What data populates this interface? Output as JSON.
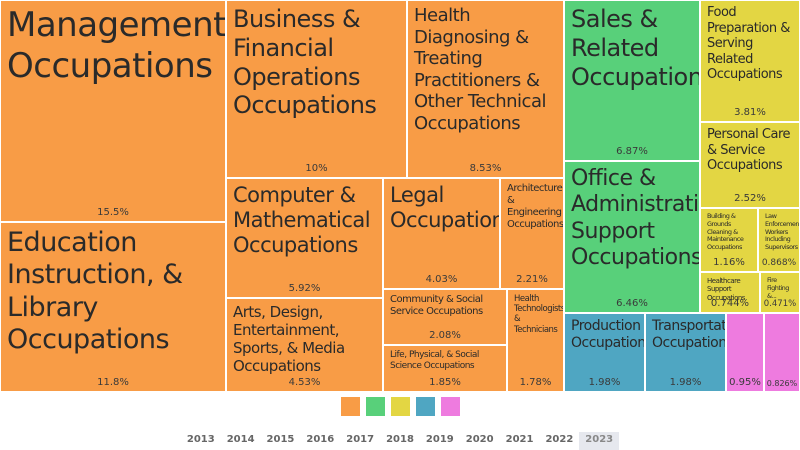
{
  "chart_data": {
    "type": "treemap",
    "colors": {
      "orange": "#f89c46",
      "green": "#58d07a",
      "yellow": "#e3d643",
      "blue": "#4fa6c2",
      "pink": "#ee7bdf"
    },
    "legend": [
      "orange",
      "green",
      "yellow",
      "blue",
      "pink"
    ],
    "items": [
      {
        "label": "Management Occupations",
        "value": "15.5%",
        "color": "orange"
      },
      {
        "label": "Education Instruction, & Library Occupations",
        "value": "11.8%",
        "color": "orange"
      },
      {
        "label": "Business & Financial Operations Occupations",
        "value": "10%",
        "color": "orange"
      },
      {
        "label": "Health Diagnosing & Treating Practitioners & Other Technical Occupations",
        "value": "8.53%",
        "color": "orange"
      },
      {
        "label": "Computer & Mathematical Occupations",
        "value": "5.92%",
        "color": "orange"
      },
      {
        "label": "Arts, Design, Entertainment, Sports, & Media Occupations",
        "value": "4.53%",
        "color": "orange"
      },
      {
        "label": "Legal Occupations",
        "value": "4.03%",
        "color": "orange"
      },
      {
        "label": "Architecture & Engineering Occupations",
        "value": "2.21%",
        "color": "orange"
      },
      {
        "label": "Community & Social Service Occupations",
        "value": "2.08%",
        "color": "orange"
      },
      {
        "label": "Health Technologists & Technicians",
        "value": "1.78%",
        "color": "orange"
      },
      {
        "label": "Life, Physical, & Social Science Occupations",
        "value": "1.85%",
        "color": "orange"
      },
      {
        "label": "Sales & Related Occupations",
        "value": "6.87%",
        "color": "green"
      },
      {
        "label": "Office & Administrative Support Occupations",
        "value": "6.46%",
        "color": "green"
      },
      {
        "label": "Food Preparation & Serving Related Occupations",
        "value": "3.81%",
        "color": "yellow"
      },
      {
        "label": "Personal Care & Service Occupations",
        "value": "2.52%",
        "color": "yellow"
      },
      {
        "label": "Building & Grounds Cleaning & Maintenance Occupations",
        "value": "1.16%",
        "color": "yellow"
      },
      {
        "label": "Law Enforcement Workers Including Supervisors",
        "value": "0.868%",
        "color": "yellow"
      },
      {
        "label": "Healthcare Support Occupations",
        "value": "0.744%",
        "color": "yellow"
      },
      {
        "label": "Fire Fighting &...",
        "value": "0.471%",
        "color": "yellow"
      },
      {
        "label": "Production Occupations",
        "value": "1.98%",
        "color": "blue"
      },
      {
        "label": "Transportation Occupations",
        "value": "1.98%",
        "color": "blue"
      },
      {
        "label": "",
        "value": "0.95%",
        "color": "pink"
      },
      {
        "label": "",
        "value": "0.826%",
        "color": "pink"
      }
    ]
  },
  "years": {
    "items": [
      "2013",
      "2014",
      "2015",
      "2016",
      "2017",
      "2018",
      "2019",
      "2020",
      "2021",
      "2022",
      "2023"
    ],
    "selected": "2023"
  }
}
